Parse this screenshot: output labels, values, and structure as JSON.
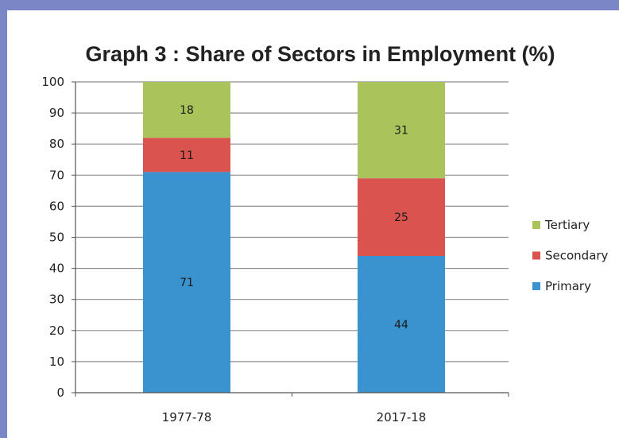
{
  "chart_data": {
    "type": "bar",
    "stacked": true,
    "title": "Graph 3 : Share of Sectors in Employment (%)",
    "xlabel": "",
    "ylabel": "",
    "categories": [
      "1977-78",
      "2017-18"
    ],
    "series": [
      {
        "name": "Primary",
        "values": [
          71,
          44
        ],
        "color": "#3a93cf"
      },
      {
        "name": "Secondary",
        "values": [
          11,
          25
        ],
        "color": "#d9534f"
      },
      {
        "name": "Tertiary",
        "values": [
          18,
          31
        ],
        "color": "#a9c45a"
      }
    ],
    "ylim": [
      0,
      100
    ],
    "yticks": [
      0,
      10,
      20,
      30,
      40,
      50,
      60,
      70,
      80,
      90,
      100
    ],
    "grid": true,
    "legend": "right"
  }
}
